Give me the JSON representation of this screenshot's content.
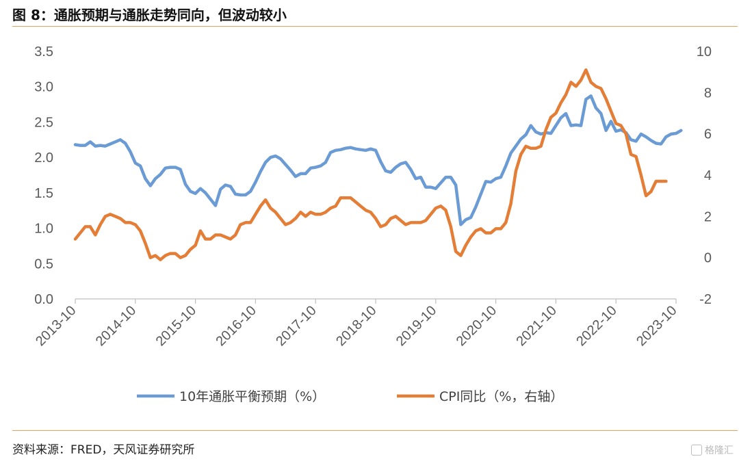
{
  "header": {
    "title": "图 8：通胀预期与通胀走势同向，但波动较小"
  },
  "footer": {
    "source": "资料来源：FRED，天风证券研究所",
    "watermark": "格隆汇"
  },
  "chart_data": {
    "type": "line",
    "title": "图 8：通胀预期与通胀走势同向，但波动较小",
    "x_ticks": [
      "2013-10",
      "2014-10",
      "2015-10",
      "2016-10",
      "2017-10",
      "2018-10",
      "2019-10",
      "2020-10",
      "2021-10",
      "2022-10",
      "2023-10"
    ],
    "x_start": "2013-10",
    "left_axis": {
      "ylim": [
        0,
        3.5
      ],
      "ticks": [
        "0.0",
        "0.5",
        "1.0",
        "1.5",
        "2.0",
        "2.5",
        "3.0",
        "3.5"
      ]
    },
    "right_axis": {
      "ylim": [
        -2,
        10
      ],
      "ticks": [
        "-2",
        "0",
        "2",
        "4",
        "6",
        "8",
        "10"
      ]
    },
    "legend_position": "bottom",
    "grid": false,
    "series": [
      {
        "name": "10年通胀平衡预期（%）",
        "axis": "left",
        "color": "#6a9bd4",
        "values": [
          2.18,
          2.17,
          2.17,
          2.22,
          2.16,
          2.17,
          2.16,
          2.19,
          2.22,
          2.25,
          2.2,
          2.08,
          1.92,
          1.88,
          1.7,
          1.6,
          1.7,
          1.76,
          1.85,
          1.86,
          1.86,
          1.83,
          1.62,
          1.52,
          1.49,
          1.56,
          1.5,
          1.41,
          1.32,
          1.55,
          1.61,
          1.59,
          1.48,
          1.47,
          1.47,
          1.52,
          1.65,
          1.8,
          1.93,
          2.0,
          2.02,
          1.98,
          1.9,
          1.82,
          1.73,
          1.77,
          1.77,
          1.85,
          1.86,
          1.88,
          1.93,
          2.07,
          2.1,
          2.11,
          2.13,
          2.14,
          2.12,
          2.11,
          2.1,
          2.12,
          2.1,
          1.94,
          1.81,
          1.79,
          1.86,
          1.91,
          1.93,
          1.83,
          1.7,
          1.72,
          1.58,
          1.58,
          1.56,
          1.64,
          1.72,
          1.72,
          1.61,
          1.05,
          1.12,
          1.15,
          1.3,
          1.48,
          1.66,
          1.65,
          1.7,
          1.72,
          1.88,
          2.06,
          2.16,
          2.26,
          2.32,
          2.45,
          2.36,
          2.33,
          2.35,
          2.34,
          2.45,
          2.56,
          2.62,
          2.45,
          2.46,
          2.45,
          2.82,
          2.87,
          2.7,
          2.62,
          2.38,
          2.51,
          2.37,
          2.39,
          2.35,
          2.25,
          2.23,
          2.33,
          2.29,
          2.24,
          2.2,
          2.19,
          2.29,
          2.33,
          2.34,
          2.38
        ]
      },
      {
        "name": "CPI同比（%，右轴）",
        "axis": "right",
        "color": "#e47d36",
        "values": [
          0.9,
          1.2,
          1.5,
          1.5,
          1.1,
          1.6,
          2.0,
          2.1,
          2.0,
          1.9,
          1.7,
          1.7,
          1.6,
          1.3,
          0.7,
          0.0,
          0.1,
          -0.1,
          0.1,
          0.2,
          0.2,
          0.0,
          0.1,
          0.4,
          0.6,
          1.3,
          0.9,
          0.9,
          1.1,
          1.1,
          1.0,
          0.9,
          1.1,
          1.6,
          1.7,
          1.7,
          2.1,
          2.5,
          2.8,
          2.4,
          2.2,
          1.9,
          1.6,
          1.7,
          1.9,
          2.2,
          2.0,
          2.2,
          2.1,
          2.1,
          2.2,
          2.4,
          2.5,
          2.9,
          2.9,
          2.9,
          2.7,
          2.5,
          2.3,
          2.2,
          1.9,
          1.5,
          1.6,
          1.9,
          2.0,
          1.8,
          1.6,
          1.7,
          1.7,
          1.7,
          1.8,
          2.1,
          2.4,
          2.5,
          2.3,
          1.5,
          0.3,
          0.1,
          0.6,
          1.0,
          1.3,
          1.4,
          1.2,
          1.2,
          1.4,
          1.4,
          1.7,
          2.6,
          4.2,
          5.0,
          5.4,
          5.3,
          5.3,
          5.4,
          6.2,
          6.8,
          7.0,
          7.5,
          7.9,
          8.5,
          8.3,
          8.6,
          9.1,
          8.5,
          8.3,
          8.2,
          7.7,
          7.1,
          6.5,
          6.4,
          6.0,
          5.0,
          4.9,
          4.0,
          3.0,
          3.2,
          3.7,
          3.7,
          3.7
        ]
      }
    ]
  }
}
